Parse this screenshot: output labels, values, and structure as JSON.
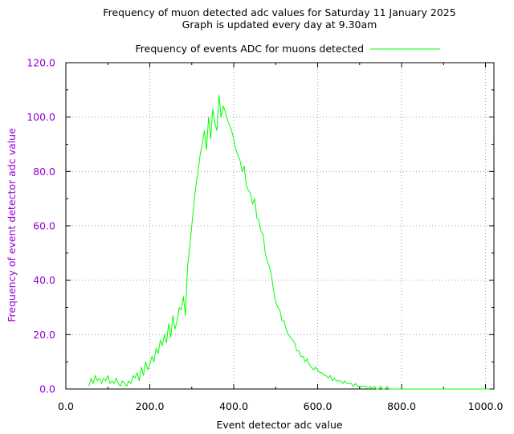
{
  "chart_data": {
    "type": "line",
    "title": "Frequency of muon detected adc values for Saturday 11 January 2025",
    "subtitle": "Graph is updated every day at 9.30am",
    "xlabel": "Event detector adc value",
    "ylabel": "Frequency of event detector adc value",
    "xlim": [
      0,
      1020
    ],
    "ylim": [
      0,
      120
    ],
    "x_ticks": [
      "0.0",
      "200.0",
      "400.0",
      "600.0",
      "800.0",
      "1000.0"
    ],
    "y_ticks": [
      "0.0",
      "20.0",
      "40.0",
      "60.0",
      "80.0",
      "100.0",
      "120.0"
    ],
    "grid": true,
    "legend_position": "top",
    "series": [
      {
        "name": "Frequency of events ADC for muons detected",
        "color": "#00ff00",
        "x": [
          55,
          60,
          65,
          70,
          75,
          80,
          85,
          90,
          95,
          100,
          105,
          110,
          115,
          120,
          125,
          130,
          135,
          140,
          145,
          150,
          155,
          160,
          165,
          170,
          175,
          180,
          185,
          190,
          195,
          200,
          205,
          210,
          215,
          220,
          225,
          230,
          235,
          240,
          245,
          250,
          255,
          260,
          265,
          270,
          275,
          280,
          285,
          290,
          295,
          300,
          305,
          310,
          315,
          320,
          325,
          330,
          335,
          340,
          345,
          350,
          355,
          360,
          365,
          370,
          375,
          380,
          385,
          390,
          395,
          400,
          405,
          410,
          415,
          420,
          425,
          430,
          435,
          440,
          445,
          450,
          455,
          460,
          465,
          470,
          475,
          480,
          485,
          490,
          495,
          500,
          505,
          510,
          515,
          520,
          525,
          530,
          535,
          540,
          545,
          550,
          555,
          560,
          565,
          570,
          575,
          580,
          585,
          590,
          595,
          600,
          605,
          610,
          615,
          620,
          625,
          630,
          635,
          640,
          645,
          650,
          655,
          660,
          665,
          670,
          675,
          680,
          685,
          690,
          695,
          700,
          705,
          710,
          715,
          720,
          725,
          730,
          735,
          740,
          745,
          750,
          755,
          760,
          765,
          770,
          775,
          780,
          785,
          790,
          795,
          800,
          810,
          820,
          830,
          840,
          850,
          860,
          870,
          880,
          890,
          900,
          910,
          920,
          930,
          940,
          950,
          960,
          970,
          980,
          990,
          1000,
          1010
        ],
        "y": [
          1,
          4,
          2,
          5,
          3,
          4,
          2,
          4,
          3,
          5,
          2,
          3,
          2,
          4,
          2,
          1,
          3,
          2,
          1,
          3,
          2,
          5,
          4,
          6,
          3,
          8,
          5,
          10,
          7,
          9,
          12,
          10,
          15,
          13,
          18,
          16,
          20,
          17,
          24,
          19,
          27,
          22,
          25,
          30,
          29,
          34,
          27,
          45,
          52,
          60,
          68,
          75,
          80,
          86,
          90,
          95,
          88,
          100,
          92,
          103,
          98,
          95,
          108,
          100,
          104,
          102,
          99,
          97,
          95,
          92,
          88,
          86,
          84,
          80,
          82,
          75,
          73,
          72,
          68,
          70,
          63,
          62,
          58,
          57,
          50,
          47,
          45,
          42,
          36,
          32,
          30,
          29,
          25,
          25,
          22,
          20,
          19,
          18,
          17,
          14,
          14,
          12,
          12,
          10,
          11,
          9,
          8,
          7,
          8,
          7,
          6,
          6,
          5,
          5,
          4,
          5,
          3,
          4,
          3,
          3,
          3,
          2,
          3,
          2,
          2,
          2,
          1,
          2,
          1,
          1,
          1,
          1,
          1,
          0,
          1,
          0,
          1,
          0,
          0,
          1,
          0,
          0,
          1,
          0,
          0,
          0,
          0,
          0,
          0,
          0,
          0,
          0,
          0,
          0,
          0,
          0,
          0,
          0,
          0,
          0,
          0,
          0,
          0,
          0,
          0,
          0,
          0,
          0,
          0,
          0,
          0
        ]
      }
    ],
    "colors": {
      "axis_text_y": "#9400d3",
      "grid": "#a0a0a0",
      "frame": "#000000"
    }
  }
}
